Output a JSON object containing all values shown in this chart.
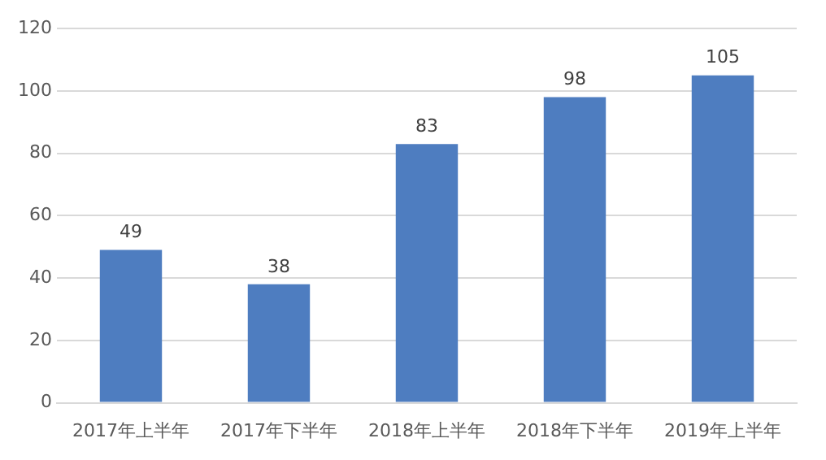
{
  "chart_data": {
    "type": "bar",
    "categories": [
      "2017年上半年",
      "2017年下半年",
      "2018年上半年",
      "2018年下半年",
      "2019年上半年"
    ],
    "values": [
      49,
      38,
      83,
      98,
      105
    ],
    "color": "#4e7dc0",
    "ylim": [
      0,
      120
    ],
    "yticks": [
      0,
      20,
      40,
      60,
      80,
      100,
      120
    ],
    "grid": "y",
    "data_labels": true
  }
}
